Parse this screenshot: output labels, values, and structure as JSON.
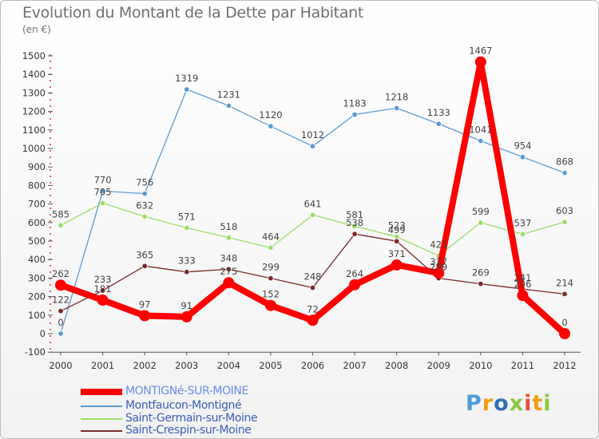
{
  "header": {
    "title": "Evolution du Montant de la Dette par Habitant",
    "unit": "(en €)"
  },
  "logo": {
    "text": "Proxiti"
  },
  "chart_data": {
    "type": "line",
    "x": [
      "2000",
      "2001",
      "2002",
      "2003",
      "2004",
      "2005",
      "2006",
      "2007",
      "2008",
      "2009",
      "2010",
      "2011",
      "2012"
    ],
    "ylim": [
      -100,
      1500
    ],
    "yticks": [
      -100,
      0,
      100,
      200,
      300,
      400,
      500,
      600,
      700,
      800,
      900,
      1000,
      1100,
      1200,
      1300,
      1400,
      1500
    ],
    "grid": false,
    "legend_position": "bottom-left",
    "series": [
      {
        "name": "MONTIGNé-SUR-MOINE",
        "color": "#ff0000",
        "values": [
          262,
          181,
          97,
          91,
          275,
          152,
          72,
          264,
          371,
          327,
          1467,
          206,
          0
        ],
        "labels": [
          "262",
          "181",
          "97",
          "91",
          "275",
          "152",
          "72",
          "264",
          "371",
          "327",
          "1467",
          "206",
          "0"
        ]
      },
      {
        "name": "Montfaucon-Montigné",
        "color": "#5b9bd5",
        "values": [
          0,
          770,
          756,
          1319,
          1231,
          1120,
          1012,
          1183,
          1218,
          1133,
          1041,
          954,
          868
        ],
        "labels": [
          "0",
          "770",
          "756",
          "1319",
          "1231",
          "1120",
          "1012",
          "1183",
          "1218",
          "1133",
          "1041",
          "954",
          "868"
        ]
      },
      {
        "name": "Saint-Germain-sur-Moine",
        "color": "#99dd66",
        "values": [
          585,
          705,
          632,
          571,
          518,
          464,
          641,
          581,
          523,
          421,
          599,
          537,
          603
        ],
        "labels": [
          "585",
          "705",
          "632",
          "571",
          "518",
          "464",
          "641",
          "581",
          "523",
          "421",
          "599",
          "537",
          "603"
        ]
      },
      {
        "name": "Saint-Crespin-sur-Moine",
        "color": "#7a2a2a",
        "values": [
          122,
          233,
          365,
          333,
          348,
          299,
          248,
          538,
          499,
          299,
          269,
          241,
          214
        ],
        "labels": [
          "122",
          "233",
          "365",
          "333",
          "348",
          "299",
          "248",
          "538",
          "499",
          "299",
          "269",
          "241",
          "214"
        ]
      }
    ]
  }
}
